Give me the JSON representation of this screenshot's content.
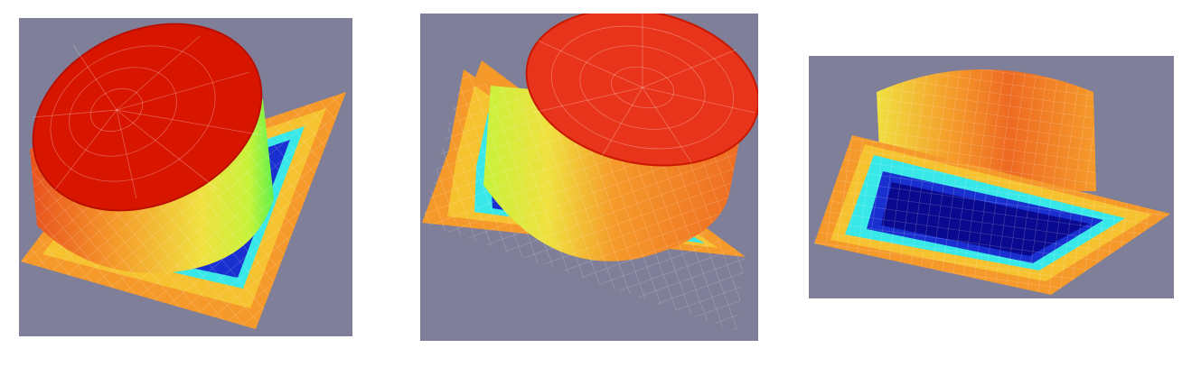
{
  "figure": {
    "views": [
      {
        "id": "view-1",
        "colormap": "jet",
        "background": "#7f7f99"
      },
      {
        "id": "view-2",
        "colormap": "jet",
        "background": "#7f7f99"
      },
      {
        "id": "view-3",
        "colormap": "jet",
        "background": "#7f7f99"
      }
    ],
    "colors": {
      "background": "#7f7f99",
      "red": "#d81600",
      "orange": "#f59a2a",
      "yellow": "#f0e040",
      "green": "#5ef04a",
      "cyan": "#38e8e8",
      "blue": "#1a2fd0",
      "navy": "#0a0a90"
    }
  }
}
